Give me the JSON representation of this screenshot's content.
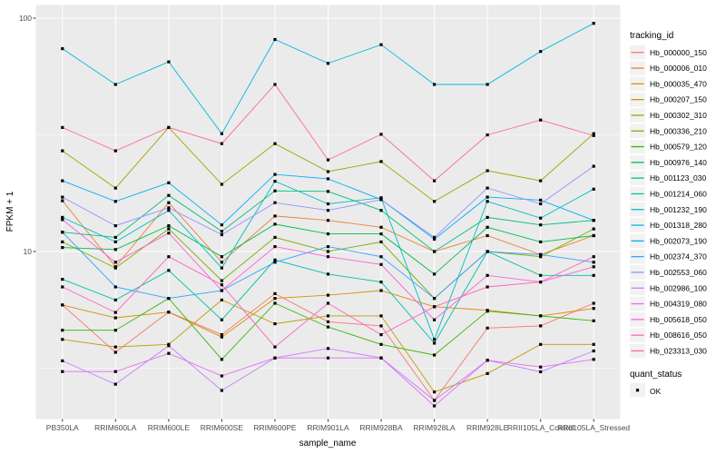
{
  "figure": {
    "background": "#ffffff",
    "panel_background": "#ebebeb",
    "grid_color": "#ffffff",
    "axis_text_color": "#4d4d4d",
    "point_color": "#000000",
    "point_shape": "square"
  },
  "legend": {
    "tracking_title": "tracking_id",
    "quant_title": "quant_status",
    "quant_ok_label": "OK",
    "key_fill": "#f2f2f2"
  },
  "chart_data": {
    "type": "line",
    "title": "",
    "xlabel": "sample_name",
    "ylabel": "FPKM + 1",
    "yscale": "log10",
    "ylim": [
      1.9,
      113
    ],
    "yticks": [
      100,
      10
    ],
    "ytick_labels": [
      "100",
      "10"
    ],
    "yminor": [
      31.62,
      3.162
    ],
    "grid": true,
    "legend_position": "right",
    "marker": "black-square",
    "categories": [
      "PB350LA",
      "RRIM600LA",
      "RRIM600LE",
      "RRIM600SE",
      "RRIM600PE",
      "RRIM901LA",
      "RRIM928BA",
      "RRIM928LA",
      "RRIM928LE",
      "RRII105LA_Control",
      "RRII105LA_Stressed"
    ],
    "series": [
      {
        "name": "Hb_000000_150",
        "color": "#F8766D",
        "values": [
          5.9,
          3.7,
          5.5,
          4.4,
          6.6,
          5.0,
          4.8,
          2.3,
          4.7,
          4.8,
          6.0
        ]
      },
      {
        "name": "Hb_000006_010",
        "color": "#EA8331",
        "values": [
          16.5,
          8.6,
          16.2,
          9.0,
          14.2,
          13.6,
          12.7,
          10.0,
          11.7,
          9.7,
          11.7
        ]
      },
      {
        "name": "Hb_000035_470",
        "color": "#D89000",
        "values": [
          5.9,
          5.2,
          5.5,
          4.3,
          6.3,
          6.5,
          6.8,
          5.8,
          5.6,
          5.3,
          5.7
        ]
      },
      {
        "name": "Hb_000207_150",
        "color": "#C09B00",
        "values": [
          4.2,
          3.9,
          4.0,
          6.2,
          4.9,
          5.3,
          5.3,
          2.5,
          3.0,
          4.0,
          4.0
        ]
      },
      {
        "name": "Hb_000302_310",
        "color": "#A3A500",
        "values": [
          27,
          18.7,
          34,
          19.4,
          29,
          22,
          24.3,
          16.4,
          22.2,
          20.1,
          32
        ]
      },
      {
        "name": "Hb_000336_210",
        "color": "#7CAE00",
        "values": [
          11,
          8.5,
          12.5,
          7.5,
          11.5,
          10,
          11,
          6.3,
          10,
          9.5,
          12.5
        ]
      },
      {
        "name": "Hb_000579_120",
        "color": "#39B600",
        "values": [
          4.6,
          4.6,
          6.3,
          3.45,
          6.0,
          4.75,
          4.0,
          3.6,
          5.55,
          5.3,
          5.05
        ]
      },
      {
        "name": "Hb_000976_140",
        "color": "#00BB4E",
        "values": [
          10.4,
          10.2,
          12.9,
          9.5,
          13.1,
          11.9,
          11.9,
          8.0,
          12.7,
          11.0,
          11.7
        ]
      },
      {
        "name": "Hb_001123_030",
        "color": "#00BF7D",
        "values": [
          12.1,
          11.5,
          17.4,
          12.2,
          18.2,
          18.1,
          15.0,
          10.0,
          14.0,
          13.0,
          13.6
        ]
      },
      {
        "name": "Hb_001214_060",
        "color": "#00C1A3",
        "values": [
          7.6,
          6.2,
          8.3,
          5.1,
          9.2,
          8.0,
          7.4,
          4.05,
          10.0,
          7.9,
          7.9
        ]
      },
      {
        "name": "Hb_001232_190",
        "color": "#00BFC4",
        "values": [
          14,
          11,
          15,
          8.5,
          20,
          16,
          17,
          4.2,
          16.4,
          13.9,
          18.5
        ]
      },
      {
        "name": "Hb_001318_280",
        "color": "#00BAE0",
        "values": [
          74,
          52,
          65,
          32,
          81,
          64,
          77,
          52,
          52,
          72,
          95
        ]
      },
      {
        "name": "Hb_002073_190",
        "color": "#00B0F6",
        "values": [
          20.1,
          16.4,
          19.7,
          13,
          21.4,
          20.5,
          16.7,
          11.3,
          17.1,
          16.6,
          13.6
        ]
      },
      {
        "name": "Hb_002374_370",
        "color": "#35A2FF",
        "values": [
          12.1,
          7.05,
          6.3,
          6.8,
          9.0,
          10.5,
          9.5,
          6.3,
          10.0,
          9.7,
          9.0
        ]
      },
      {
        "name": "Hb_002553_060",
        "color": "#9590FF",
        "values": [
          17.1,
          12.9,
          15.4,
          11.8,
          16.2,
          15.0,
          16.7,
          11.5,
          18.7,
          16.0,
          23.2
        ]
      },
      {
        "name": "Hb_002986_100",
        "color": "#C77CFF",
        "values": [
          3.4,
          2.7,
          3.95,
          2.54,
          3.5,
          3.84,
          3.5,
          2.3,
          3.42,
          3.05,
          3.75
        ]
      },
      {
        "name": "Hb_004319_080",
        "color": "#E76BF3",
        "values": [
          3.06,
          3.06,
          3.66,
          2.93,
          3.5,
          3.5,
          3.5,
          2.18,
          3.42,
          3.2,
          3.45
        ]
      },
      {
        "name": "Hb_005618_050",
        "color": "#FA62DB",
        "values": [
          13.7,
          9.0,
          12.0,
          6.8,
          10.5,
          9.5,
          8.8,
          5.1,
          7.9,
          7.4,
          8.6
        ]
      },
      {
        "name": "Hb_008616_050",
        "color": "#FF62BC",
        "values": [
          7.05,
          5.48,
          9.5,
          7.2,
          3.9,
          6.0,
          4.4,
          5.8,
          7.05,
          7.4,
          9.5
        ]
      },
      {
        "name": "Hb_023313_030",
        "color": "#FF6A98",
        "values": [
          34,
          27,
          34,
          29,
          52,
          24.7,
          31.8,
          20.1,
          31.6,
          36.6,
          31.4
        ]
      }
    ]
  }
}
